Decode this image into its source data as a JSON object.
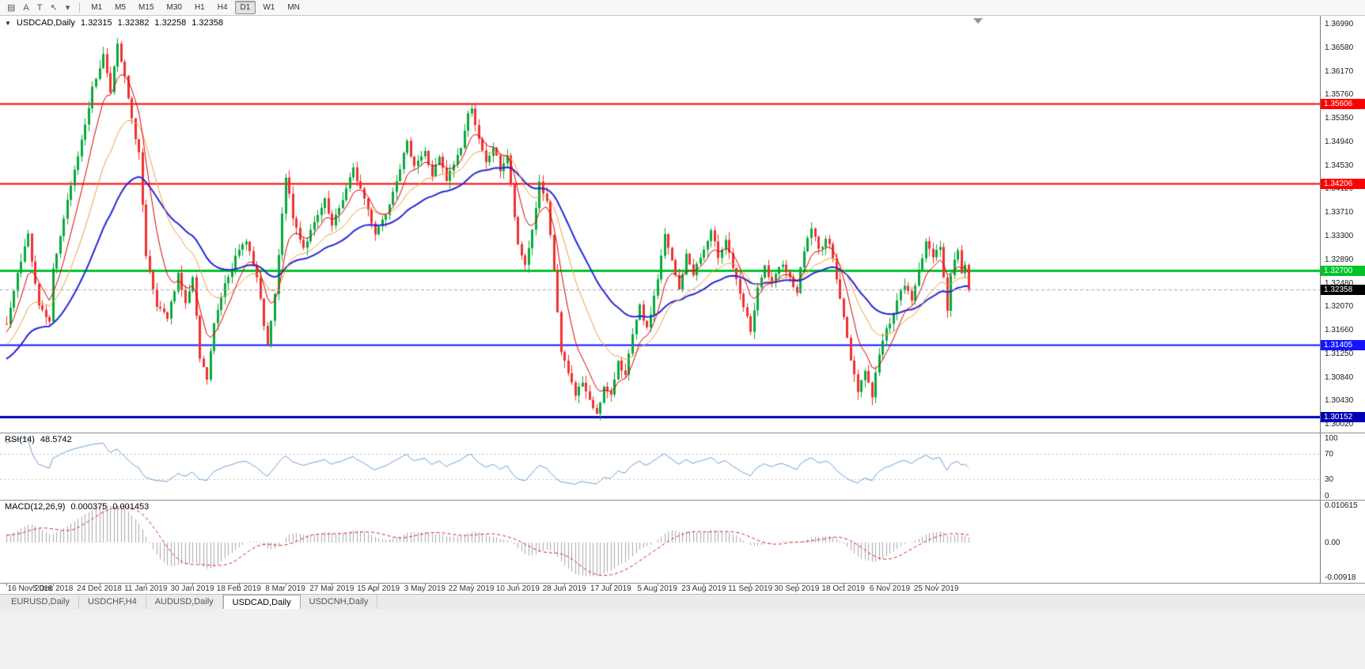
{
  "toolbar": {
    "icons": [
      {
        "name": "chart-window-icon",
        "glyph": "▤"
      },
      {
        "name": "annotation-a-button",
        "glyph": "A"
      },
      {
        "name": "text-tool-button",
        "glyph": "T"
      },
      {
        "name": "cursor-tool-icon",
        "glyph": "↖"
      },
      {
        "name": "cursor-dropdown-icon",
        "glyph": "▾"
      }
    ],
    "timeframes": [
      {
        "label": "M1",
        "active": false
      },
      {
        "label": "M5",
        "active": false
      },
      {
        "label": "M15",
        "active": false
      },
      {
        "label": "M30",
        "active": false
      },
      {
        "label": "H1",
        "active": false
      },
      {
        "label": "H4",
        "active": false
      },
      {
        "label": "D1",
        "active": true
      },
      {
        "label": "W1",
        "active": false
      },
      {
        "label": "MN",
        "active": false
      }
    ]
  },
  "header": {
    "collapse_glyph": "▼",
    "symbol_label": "USDCAD,Daily"
  },
  "chart_data": {
    "type": "candlestick",
    "symbol": "USDCAD",
    "timeframe": "Daily",
    "ohlc_display": {
      "open": "1.32315",
      "high": "1.32382",
      "low": "1.32258",
      "close": "1.32358"
    },
    "price_axis": {
      "top_price": 1.3713,
      "bottom_price": 1.2987,
      "ticks": [
        "1.36990",
        "1.36580",
        "1.36170",
        "1.35760",
        "1.35350",
        "1.34940",
        "1.34530",
        "1.34120",
        "1.33710",
        "1.33300",
        "1.32890",
        "1.32480",
        "1.32070",
        "1.31660",
        "1.31250",
        "1.30840",
        "1.30430",
        "1.30020"
      ]
    },
    "x_axis_dates": [
      "16 Nov 2018",
      "5 Dec 2018",
      "24 Dec 2018",
      "11 Jan 2019",
      "30 Jan 2019",
      "18 Feb 2019",
      "8 Mar 2019",
      "27 Mar 2019",
      "15 Apr 2019",
      "3 May 2019",
      "22 May 2019",
      "10 Jun 2019",
      "28 Jun 2019",
      "17 Jul 2019",
      "5 Aug 2019",
      "23 Aug 2019",
      "11 Sep 2019",
      "30 Sep 2019",
      "18 Oct 2019",
      "6 Nov 2019",
      "25 Nov 2019"
    ],
    "bars": {
      "count": 270,
      "last_close": 1.32358,
      "up_color": "#07A93B",
      "down_color": "#F03030",
      "path_anchors": [
        [
          0,
          1.3175
        ],
        [
          3,
          1.326
        ],
        [
          6,
          1.333
        ],
        [
          9,
          1.321
        ],
        [
          12,
          1.3185
        ],
        [
          13,
          1.327
        ],
        [
          16,
          1.336
        ],
        [
          20,
          1.347
        ],
        [
          24,
          1.3585
        ],
        [
          27,
          1.3645
        ],
        [
          29,
          1.3585
        ],
        [
          31,
          1.366
        ],
        [
          33,
          1.3605
        ],
        [
          35,
          1.353
        ],
        [
          37,
          1.3475
        ],
        [
          39,
          1.329
        ],
        [
          42,
          1.3205
        ],
        [
          45,
          1.3185
        ],
        [
          48,
          1.3265
        ],
        [
          50,
          1.321
        ],
        [
          52,
          1.3255
        ],
        [
          54,
          1.3115
        ],
        [
          56,
          1.308
        ],
        [
          58,
          1.3175
        ],
        [
          61,
          1.325
        ],
        [
          64,
          1.329
        ],
        [
          67,
          1.3325
        ],
        [
          70,
          1.3255
        ],
        [
          73,
          1.3135
        ],
        [
          75,
          1.3225
        ],
        [
          78,
          1.3435
        ],
        [
          80,
          1.336
        ],
        [
          83,
          1.331
        ],
        [
          86,
          1.335
        ],
        [
          89,
          1.339
        ],
        [
          91,
          1.3345
        ],
        [
          94,
          1.3395
        ],
        [
          97,
          1.3445
        ],
        [
          100,
          1.3395
        ],
        [
          103,
          1.3335
        ],
        [
          106,
          1.337
        ],
        [
          109,
          1.343
        ],
        [
          112,
          1.349
        ],
        [
          114,
          1.3455
        ],
        [
          117,
          1.3475
        ],
        [
          119,
          1.3435
        ],
        [
          121,
          1.3465
        ],
        [
          123,
          1.3425
        ],
        [
          125,
          1.3455
        ],
        [
          127,
          1.3485
        ],
        [
          129,
          1.354
        ],
        [
          130,
          1.3556
        ],
        [
          132,
          1.3495
        ],
        [
          134,
          1.3455
        ],
        [
          136,
          1.3485
        ],
        [
          138,
          1.3445
        ],
        [
          140,
          1.347
        ],
        [
          143,
          1.331
        ],
        [
          145,
          1.328
        ],
        [
          147,
          1.334
        ],
        [
          149,
          1.342
        ],
        [
          151,
          1.3385
        ],
        [
          153,
          1.327
        ],
        [
          155,
          1.3125
        ],
        [
          157,
          1.309
        ],
        [
          159,
          1.3055
        ],
        [
          161,
          1.3075
        ],
        [
          163,
          1.304
        ],
        [
          165,
          1.3022
        ],
        [
          167,
          1.3065
        ],
        [
          169,
          1.3048
        ],
        [
          171,
          1.3115
        ],
        [
          173,
          1.3085
        ],
        [
          175,
          1.3155
        ],
        [
          177,
          1.3205
        ],
        [
          179,
          1.3165
        ],
        [
          182,
          1.3255
        ],
        [
          184,
          1.333
        ],
        [
          186,
          1.3285
        ],
        [
          188,
          1.3235
        ],
        [
          190,
          1.3295
        ],
        [
          192,
          1.3265
        ],
        [
          195,
          1.3305
        ],
        [
          197,
          1.3335
        ],
        [
          199,
          1.3295
        ],
        [
          201,
          1.3325
        ],
        [
          203,
          1.3275
        ],
        [
          205,
          1.3225
        ],
        [
          208,
          1.3165
        ],
        [
          210,
          1.3235
        ],
        [
          212,
          1.3275
        ],
        [
          214,
          1.3245
        ],
        [
          217,
          1.3285
        ],
        [
          219,
          1.3255
        ],
        [
          221,
          1.3235
        ],
        [
          223,
          1.3305
        ],
        [
          225,
          1.3345
        ],
        [
          227,
          1.3305
        ],
        [
          229,
          1.3325
        ],
        [
          231,
          1.3295
        ],
        [
          234,
          1.3185
        ],
        [
          236,
          1.3115
        ],
        [
          238,
          1.3062
        ],
        [
          240,
          1.3095
        ],
        [
          242,
          1.3052
        ],
        [
          244,
          1.3125
        ],
        [
          246,
          1.3165
        ],
        [
          249,
          1.3215
        ],
        [
          251,
          1.3245
        ],
        [
          253,
          1.3215
        ],
        [
          255,
          1.3275
        ],
        [
          257,
          1.3315
        ],
        [
          259,
          1.3295
        ],
        [
          261,
          1.3315
        ],
        [
          263,
          1.32
        ],
        [
          264,
          1.3258
        ],
        [
          265,
          1.3292
        ],
        [
          266,
          1.3302
        ],
        [
          267,
          1.3268
        ],
        [
          268,
          1.3282
        ],
        [
          269,
          1.32358
        ]
      ]
    },
    "moving_averages": [
      {
        "name": "ma-slow-blue",
        "period": 40,
        "color": "#2626D8",
        "width": 2
      },
      {
        "name": "ma-mid-orange",
        "period": 20,
        "color": "#EFA03A",
        "width": 1
      },
      {
        "name": "ma-fast-red",
        "period": 8,
        "color": "#DD0000",
        "width": 1
      }
    ],
    "hlines": [
      {
        "label": "1.35606",
        "value": 1.35606,
        "color": "#FF0000",
        "width": 2
      },
      {
        "label": "1.34206",
        "value": 1.34206,
        "color": "#FF0000",
        "width": 2
      },
      {
        "label": "1.32700",
        "value": 1.327,
        "color": "#00C32B",
        "width": 3
      },
      {
        "label": "1.31405",
        "value": 1.31405,
        "color": "#1414FF",
        "width": 2
      },
      {
        "label": "1.30152",
        "value": 1.30152,
        "color": "#0000B4",
        "width": 3
      }
    ],
    "current_price": {
      "label": "1.32358",
      "value": 1.32358,
      "tag_bg": "#000000",
      "line_color": "#A8A8A8"
    },
    "rsi": {
      "title": "RSI(14)",
      "value": "48.5742",
      "period": 14,
      "color": "#6D9FD4",
      "levels": [
        70,
        30
      ],
      "level_color": "#C0C0C0",
      "axis_labels": [
        {
          "text": "100",
          "v": 100
        },
        {
          "text": "70",
          "v": 70
        },
        {
          "text": "30",
          "v": 30
        },
        {
          "text": "0",
          "v": 0
        }
      ]
    },
    "macd": {
      "title": "MACD(12,26,9)",
      "macd_value": "0.000375",
      "signal_value": "0.001453",
      "fast": 12,
      "slow": 26,
      "signal": 9,
      "histogram_color": "#A9A9A9",
      "signal_color": "#E02020",
      "axis_top_label": "0.010615",
      "axis_zero_label": "0.00",
      "axis_bottom_label": "-0.00918"
    }
  },
  "tabs": [
    {
      "label": "EURUSD,Daily",
      "active": false
    },
    {
      "label": "USDCHF,H4",
      "active": false
    },
    {
      "label": "AUDUSD,Daily",
      "active": false
    },
    {
      "label": "USDCAD,Daily",
      "active": true
    },
    {
      "label": "USDCNH,Daily",
      "active": false
    }
  ]
}
